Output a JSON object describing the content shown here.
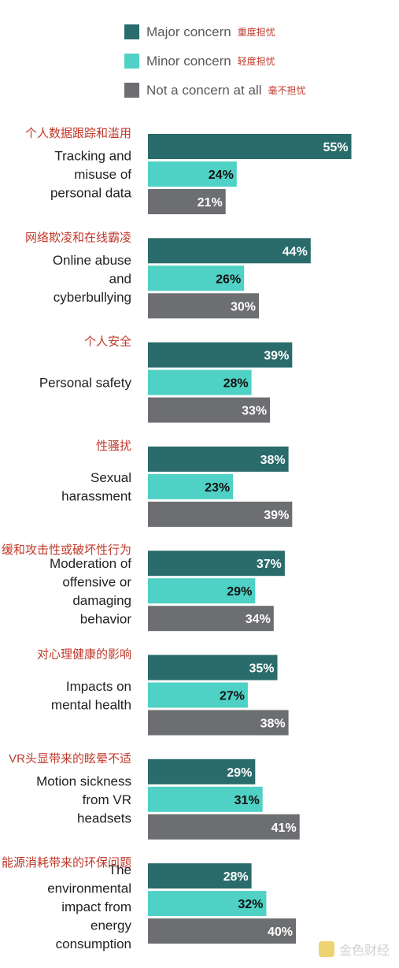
{
  "legend": [
    {
      "name": "Major concern",
      "name_zh": "重度担忧",
      "color": "#2a6b6b"
    },
    {
      "name": "Minor concern",
      "name_zh": "轻度担忧",
      "color": "#4fd1c5"
    },
    {
      "name": "Not a concern at all",
      "name_zh": "毫不担忧",
      "color": "#6d6e71"
    }
  ],
  "watermark": {
    "text": "金色财经"
  },
  "chart_data": {
    "type": "bar",
    "orientation": "horizontal",
    "xlim": [
      0,
      100
    ],
    "value_suffix": "%",
    "series": [
      {
        "name": "Major concern",
        "color": "#2a6b6b"
      },
      {
        "name": "Minor concern",
        "color": "#4fd1c5"
      },
      {
        "name": "Not a concern at all",
        "color": "#6d6e71"
      }
    ],
    "categories": [
      {
        "label_zh": "个人数据跟踪和滥用",
        "label_en": [
          "Tracking and",
          "misuse of",
          "personal data"
        ],
        "values": [
          55,
          24,
          21
        ]
      },
      {
        "label_zh": "网络欺凌和在线霸凌",
        "label_en": [
          "Online abuse",
          "and",
          "cyberbullying"
        ],
        "values": [
          44,
          26,
          30
        ]
      },
      {
        "label_zh": "个人安全",
        "label_en": [
          "Personal safety"
        ],
        "values": [
          39,
          28,
          33
        ]
      },
      {
        "label_zh": "性骚扰",
        "label_en": [
          "Sexual",
          "harassment"
        ],
        "values": [
          38,
          23,
          39
        ]
      },
      {
        "label_zh": "缓和攻击性或破坏性行为",
        "label_en": [
          "Moderation of",
          "offensive or",
          "damaging",
          "behavior"
        ],
        "values": [
          37,
          29,
          34
        ]
      },
      {
        "label_zh": "对心理健康的影响",
        "label_en": [
          "Impacts on",
          "mental health"
        ],
        "values": [
          35,
          27,
          38
        ]
      },
      {
        "label_zh": "VR头显带来的眩晕不适",
        "label_en": [
          "Motion sickness",
          "from VR",
          "headsets"
        ],
        "values": [
          29,
          31,
          41
        ]
      },
      {
        "label_zh": "能源消耗带来的环保问题",
        "label_en": [
          "The",
          "environmental",
          "impact from",
          "energy",
          "consumption"
        ],
        "values": [
          28,
          32,
          40
        ]
      }
    ]
  }
}
